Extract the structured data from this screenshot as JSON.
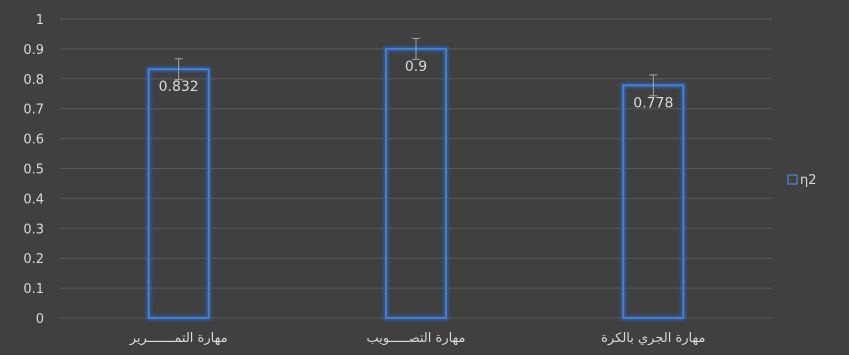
{
  "chart_data": {
    "type": "bar",
    "categories": [
      "مهارة التمـــــــرير",
      "مهارة التصـــــويب",
      "مهارة الجري بالكرة"
    ],
    "series": [
      {
        "name": "η2",
        "values": [
          0.832,
          0.9,
          0.778
        ]
      }
    ],
    "data_labels": [
      "0.832",
      "0.9",
      "0.778"
    ],
    "error_bar": 0.035,
    "ylim": [
      0,
      1
    ],
    "yticks": [
      "0",
      "0.1",
      "0.2",
      "0.3",
      "0.4",
      "0.5",
      "0.6",
      "0.7",
      "0.8",
      "0.9",
      "1"
    ],
    "grid": true,
    "legend": "right",
    "colors": {
      "background": "#404040",
      "bar_stroke": "#4a86d6",
      "bar_glow": "#2f5fa8",
      "grid": "#595959",
      "text": "#d9d9d9",
      "error_bar": "#a6a6a6"
    }
  }
}
